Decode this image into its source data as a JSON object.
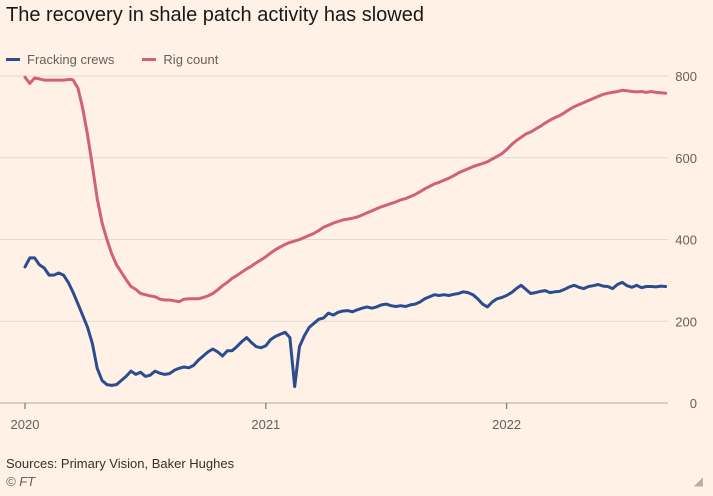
{
  "title": "The recovery in shale patch activity has slowed",
  "source": "Sources: Primary Vision, Baker Hughes",
  "credit": "© FT",
  "chart_data": {
    "type": "line",
    "title": "The recovery in shale patch activity has slowed",
    "xlabel": "",
    "ylabel": "",
    "ylim": [
      0,
      800
    ],
    "xlim": [
      2020.0,
      2022.67
    ],
    "y_ticks": [
      0,
      200,
      400,
      600,
      800
    ],
    "y_tick_labels": [
      "0",
      "200",
      "400",
      "600",
      "800"
    ],
    "x_ticks": [
      2020,
      2021,
      2022
    ],
    "x_tick_labels": [
      "2020",
      "2021",
      "2022"
    ],
    "legend": "top-left",
    "grid": true,
    "series": [
      {
        "name": "Fracking crews",
        "color": "#2a4d8f",
        "points": [
          [
            2020.0,
            333
          ],
          [
            2020.02,
            355
          ],
          [
            2020.04,
            355
          ],
          [
            2020.06,
            338
          ],
          [
            2020.08,
            330
          ],
          [
            2020.1,
            313
          ],
          [
            2020.12,
            313
          ],
          [
            2020.14,
            318
          ],
          [
            2020.16,
            313
          ],
          [
            2020.18,
            295
          ],
          [
            2020.2,
            270
          ],
          [
            2020.23,
            228
          ],
          [
            2020.26,
            185
          ],
          [
            2020.28,
            145
          ],
          [
            2020.3,
            85
          ],
          [
            2020.32,
            55
          ],
          [
            2020.34,
            45
          ],
          [
            2020.36,
            43
          ],
          [
            2020.38,
            45
          ],
          [
            2020.4,
            55
          ],
          [
            2020.42,
            65
          ],
          [
            2020.44,
            78
          ],
          [
            2020.46,
            70
          ],
          [
            2020.48,
            75
          ],
          [
            2020.5,
            65
          ],
          [
            2020.52,
            68
          ],
          [
            2020.54,
            78
          ],
          [
            2020.56,
            73
          ],
          [
            2020.58,
            70
          ],
          [
            2020.6,
            72
          ],
          [
            2020.62,
            80
          ],
          [
            2020.64,
            85
          ],
          [
            2020.66,
            88
          ],
          [
            2020.68,
            86
          ],
          [
            2020.7,
            92
          ],
          [
            2020.72,
            105
          ],
          [
            2020.74,
            115
          ],
          [
            2020.76,
            125
          ],
          [
            2020.78,
            132
          ],
          [
            2020.8,
            125
          ],
          [
            2020.82,
            115
          ],
          [
            2020.84,
            128
          ],
          [
            2020.86,
            128
          ],
          [
            2020.88,
            138
          ],
          [
            2020.9,
            150
          ],
          [
            2020.92,
            160
          ],
          [
            2020.94,
            148
          ],
          [
            2020.96,
            138
          ],
          [
            2020.98,
            135
          ],
          [
            2021.0,
            140
          ],
          [
            2021.02,
            155
          ],
          [
            2021.04,
            163
          ],
          [
            2021.06,
            168
          ],
          [
            2021.08,
            173
          ],
          [
            2021.1,
            160
          ],
          [
            2021.12,
            40
          ],
          [
            2021.14,
            138
          ],
          [
            2021.16,
            165
          ],
          [
            2021.18,
            185
          ],
          [
            2021.2,
            195
          ],
          [
            2021.22,
            205
          ],
          [
            2021.24,
            208
          ],
          [
            2021.26,
            220
          ],
          [
            2021.28,
            215
          ],
          [
            2021.3,
            222
          ],
          [
            2021.32,
            225
          ],
          [
            2021.34,
            226
          ],
          [
            2021.36,
            223
          ],
          [
            2021.38,
            228
          ],
          [
            2021.4,
            232
          ],
          [
            2021.42,
            235
          ],
          [
            2021.44,
            232
          ],
          [
            2021.46,
            235
          ],
          [
            2021.48,
            240
          ],
          [
            2021.5,
            242
          ],
          [
            2021.52,
            238
          ],
          [
            2021.54,
            236
          ],
          [
            2021.56,
            238
          ],
          [
            2021.58,
            236
          ],
          [
            2021.6,
            240
          ],
          [
            2021.62,
            242
          ],
          [
            2021.64,
            247
          ],
          [
            2021.66,
            255
          ],
          [
            2021.68,
            260
          ],
          [
            2021.7,
            265
          ],
          [
            2021.72,
            263
          ],
          [
            2021.74,
            265
          ],
          [
            2021.76,
            263
          ],
          [
            2021.78,
            266
          ],
          [
            2021.8,
            268
          ],
          [
            2021.82,
            272
          ],
          [
            2021.84,
            270
          ],
          [
            2021.86,
            265
          ],
          [
            2021.88,
            255
          ],
          [
            2021.9,
            242
          ],
          [
            2021.92,
            235
          ],
          [
            2021.94,
            247
          ],
          [
            2021.96,
            255
          ],
          [
            2021.98,
            258
          ],
          [
            2022.0,
            263
          ],
          [
            2022.02,
            270
          ],
          [
            2022.04,
            280
          ],
          [
            2022.06,
            288
          ],
          [
            2022.08,
            278
          ],
          [
            2022.1,
            268
          ],
          [
            2022.12,
            270
          ],
          [
            2022.14,
            273
          ],
          [
            2022.16,
            275
          ],
          [
            2022.18,
            270
          ],
          [
            2022.2,
            272
          ],
          [
            2022.22,
            273
          ],
          [
            2022.24,
            278
          ],
          [
            2022.26,
            284
          ],
          [
            2022.28,
            288
          ],
          [
            2022.3,
            283
          ],
          [
            2022.32,
            280
          ],
          [
            2022.34,
            285
          ],
          [
            2022.36,
            287
          ],
          [
            2022.38,
            290
          ],
          [
            2022.4,
            286
          ],
          [
            2022.42,
            285
          ],
          [
            2022.44,
            280
          ],
          [
            2022.46,
            290
          ],
          [
            2022.48,
            295
          ],
          [
            2022.5,
            287
          ],
          [
            2022.52,
            283
          ],
          [
            2022.54,
            288
          ],
          [
            2022.56,
            282
          ],
          [
            2022.58,
            285
          ],
          [
            2022.6,
            285
          ],
          [
            2022.62,
            284
          ],
          [
            2022.64,
            286
          ],
          [
            2022.66,
            285
          ]
        ]
      },
      {
        "name": "Rig count",
        "color": "#d1607c",
        "points": [
          [
            2020.0,
            797
          ],
          [
            2020.02,
            782
          ],
          [
            2020.04,
            795
          ],
          [
            2020.06,
            793
          ],
          [
            2020.08,
            790
          ],
          [
            2020.1,
            790
          ],
          [
            2020.13,
            790
          ],
          [
            2020.16,
            790
          ],
          [
            2020.19,
            792
          ],
          [
            2020.2,
            790
          ],
          [
            2020.22,
            770
          ],
          [
            2020.24,
            720
          ],
          [
            2020.26,
            655
          ],
          [
            2020.28,
            580
          ],
          [
            2020.3,
            500
          ],
          [
            2020.32,
            440
          ],
          [
            2020.34,
            400
          ],
          [
            2020.36,
            365
          ],
          [
            2020.38,
            338
          ],
          [
            2020.4,
            320
          ],
          [
            2020.42,
            302
          ],
          [
            2020.44,
            285
          ],
          [
            2020.46,
            278
          ],
          [
            2020.48,
            268
          ],
          [
            2020.5,
            265
          ],
          [
            2020.52,
            262
          ],
          [
            2020.54,
            260
          ],
          [
            2020.56,
            254
          ],
          [
            2020.58,
            252
          ],
          [
            2020.6,
            252
          ],
          [
            2020.62,
            250
          ],
          [
            2020.64,
            248
          ],
          [
            2020.66,
            254
          ],
          [
            2020.68,
            255
          ],
          [
            2020.7,
            255
          ],
          [
            2020.72,
            255
          ],
          [
            2020.74,
            258
          ],
          [
            2020.76,
            262
          ],
          [
            2020.78,
            268
          ],
          [
            2020.8,
            277
          ],
          [
            2020.82,
            287
          ],
          [
            2020.84,
            295
          ],
          [
            2020.86,
            305
          ],
          [
            2020.88,
            312
          ],
          [
            2020.9,
            320
          ],
          [
            2020.92,
            328
          ],
          [
            2020.94,
            335
          ],
          [
            2020.96,
            343
          ],
          [
            2020.98,
            350
          ],
          [
            2021.0,
            358
          ],
          [
            2021.02,
            367
          ],
          [
            2021.04,
            375
          ],
          [
            2021.06,
            382
          ],
          [
            2021.08,
            388
          ],
          [
            2021.1,
            393
          ],
          [
            2021.12,
            396
          ],
          [
            2021.14,
            400
          ],
          [
            2021.16,
            405
          ],
          [
            2021.18,
            410
          ],
          [
            2021.2,
            415
          ],
          [
            2021.22,
            422
          ],
          [
            2021.24,
            430
          ],
          [
            2021.26,
            435
          ],
          [
            2021.28,
            440
          ],
          [
            2021.3,
            444
          ],
          [
            2021.32,
            448
          ],
          [
            2021.34,
            450
          ],
          [
            2021.36,
            452
          ],
          [
            2021.38,
            455
          ],
          [
            2021.4,
            460
          ],
          [
            2021.42,
            465
          ],
          [
            2021.44,
            470
          ],
          [
            2021.46,
            475
          ],
          [
            2021.48,
            480
          ],
          [
            2021.5,
            484
          ],
          [
            2021.52,
            488
          ],
          [
            2021.54,
            492
          ],
          [
            2021.56,
            497
          ],
          [
            2021.58,
            500
          ],
          [
            2021.6,
            505
          ],
          [
            2021.62,
            510
          ],
          [
            2021.64,
            517
          ],
          [
            2021.66,
            524
          ],
          [
            2021.68,
            530
          ],
          [
            2021.7,
            536
          ],
          [
            2021.72,
            540
          ],
          [
            2021.74,
            545
          ],
          [
            2021.76,
            550
          ],
          [
            2021.78,
            556
          ],
          [
            2021.8,
            563
          ],
          [
            2021.82,
            568
          ],
          [
            2021.84,
            573
          ],
          [
            2021.86,
            578
          ],
          [
            2021.88,
            582
          ],
          [
            2021.9,
            586
          ],
          [
            2021.92,
            590
          ],
          [
            2021.94,
            597
          ],
          [
            2021.96,
            603
          ],
          [
            2021.98,
            610
          ],
          [
            2022.0,
            620
          ],
          [
            2022.02,
            632
          ],
          [
            2022.04,
            642
          ],
          [
            2022.06,
            650
          ],
          [
            2022.08,
            658
          ],
          [
            2022.1,
            663
          ],
          [
            2022.12,
            670
          ],
          [
            2022.14,
            677
          ],
          [
            2022.16,
            685
          ],
          [
            2022.18,
            692
          ],
          [
            2022.2,
            698
          ],
          [
            2022.22,
            703
          ],
          [
            2022.24,
            710
          ],
          [
            2022.26,
            718
          ],
          [
            2022.28,
            725
          ],
          [
            2022.3,
            730
          ],
          [
            2022.32,
            735
          ],
          [
            2022.34,
            740
          ],
          [
            2022.36,
            745
          ],
          [
            2022.38,
            750
          ],
          [
            2022.4,
            755
          ],
          [
            2022.42,
            758
          ],
          [
            2022.44,
            760
          ],
          [
            2022.46,
            762
          ],
          [
            2022.48,
            765
          ],
          [
            2022.5,
            764
          ],
          [
            2022.52,
            762
          ],
          [
            2022.54,
            761
          ],
          [
            2022.56,
            762
          ],
          [
            2022.58,
            760
          ],
          [
            2022.6,
            762
          ],
          [
            2022.62,
            760
          ],
          [
            2022.64,
            759
          ],
          [
            2022.66,
            758
          ]
        ]
      }
    ]
  },
  "colors": {
    "background": "#fff1e5",
    "grid": "#e3d9cf",
    "axis_text": "#66605c"
  }
}
